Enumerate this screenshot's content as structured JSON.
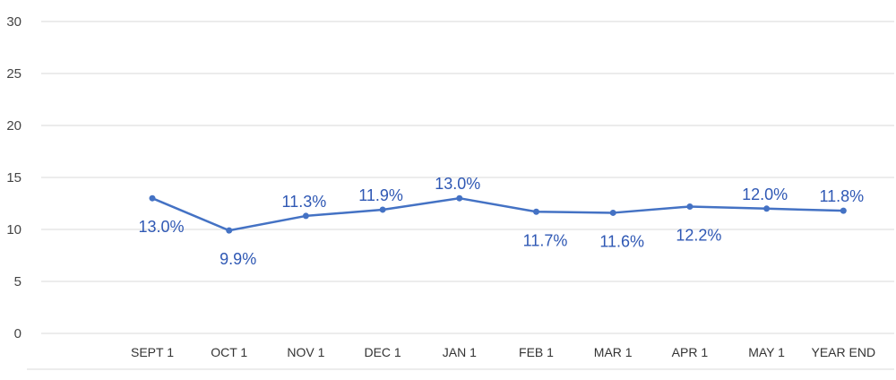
{
  "chart_data": {
    "type": "line",
    "title": "",
    "xlabel": "",
    "ylabel": "",
    "categories": [
      "SEPT 1",
      "OCT 1",
      "NOV 1",
      "DEC 1",
      "JAN 1",
      "FEB 1",
      "MAR 1",
      "APR 1",
      "MAY 1",
      "YEAR END"
    ],
    "series": [
      {
        "values": [
          13.0,
          9.9,
          11.3,
          11.9,
          13.0,
          11.7,
          11.6,
          12.2,
          12.0,
          11.8
        ],
        "labels": [
          "13.0%",
          "9.9%",
          "11.3%",
          "11.9%",
          "13.0%",
          "11.7%",
          "11.6%",
          "12.2%",
          "12.0%",
          "11.8%"
        ],
        "label_side": [
          "below",
          "below",
          "above",
          "above",
          "above",
          "below",
          "below",
          "below",
          "above",
          "above"
        ],
        "color": "#4472C4"
      }
    ],
    "ylim": [
      0,
      30
    ],
    "yticks": [
      0,
      5,
      10,
      15,
      20,
      25,
      30
    ],
    "grid": true,
    "legend": "none",
    "label_color": "#2F58B4",
    "grid_color": "#D9D9D9"
  }
}
